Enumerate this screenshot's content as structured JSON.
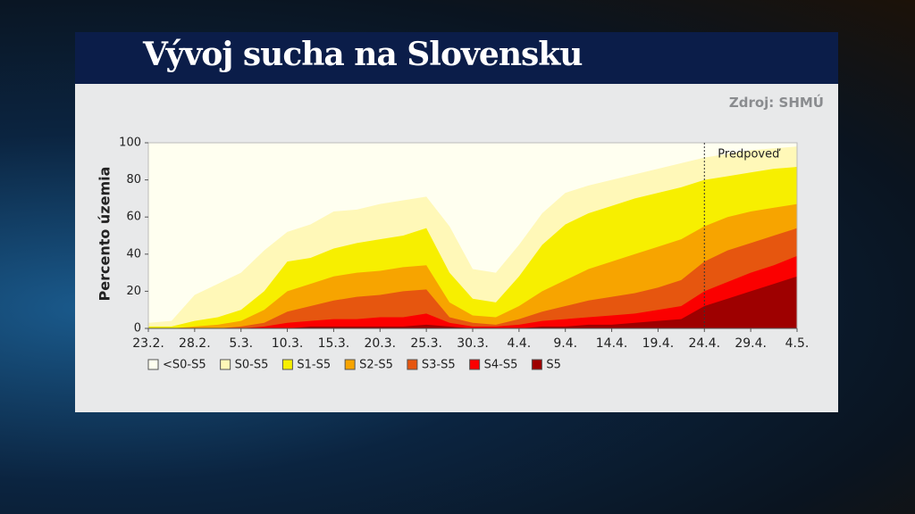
{
  "header": {
    "title": "Vývoj sucha na Slovensku",
    "source": "Zdroj: SHMÚ"
  },
  "chart_data": {
    "type": "area",
    "y_label": "Percento územia",
    "annotation": "Predpoveď",
    "forecast_start": "24.4.",
    "categories": [
      "23.2.",
      null,
      "28.2.",
      null,
      "5.3.",
      null,
      "10.3.",
      null,
      "15.3.",
      null,
      "20.3.",
      null,
      "25.3.",
      null,
      "30.3.",
      null,
      "4.4.",
      null,
      "9.4.",
      null,
      "14.4.",
      null,
      "19.4.",
      null,
      "24.4.",
      null,
      "29.4.",
      null,
      "4.5."
    ],
    "ylim": [
      0,
      100
    ],
    "yticks": [
      0,
      20,
      40,
      60,
      80,
      100
    ],
    "series": [
      {
        "name": "<S0-S5",
        "color": "#fffff0",
        "values": [
          100,
          100,
          100,
          100,
          100,
          100,
          100,
          100,
          100,
          100,
          100,
          100,
          100,
          100,
          100,
          100,
          100,
          100,
          100,
          100,
          100,
          100,
          100,
          100,
          100,
          100,
          100,
          100,
          100
        ]
      },
      {
        "name": "S0-S5",
        "color": "#fff8b8",
        "values": [
          3,
          4,
          18,
          24,
          30,
          42,
          52,
          56,
          63,
          64,
          67,
          69,
          71,
          55,
          32,
          30,
          45,
          62,
          73,
          77,
          80,
          83,
          86,
          89,
          92,
          94,
          96,
          97,
          98
        ]
      },
      {
        "name": "S1-S5",
        "color": "#f7ef00",
        "values": [
          1,
          1,
          4,
          6,
          10,
          20,
          36,
          38,
          43,
          46,
          48,
          50,
          54,
          30,
          16,
          14,
          28,
          45,
          56,
          62,
          66,
          70,
          73,
          76,
          80,
          82,
          84,
          86,
          87
        ]
      },
      {
        "name": "S2-S5",
        "color": "#f7a400",
        "values": [
          0,
          0,
          1,
          2,
          4,
          10,
          20,
          24,
          28,
          30,
          31,
          33,
          34,
          14,
          7,
          6,
          12,
          20,
          26,
          32,
          36,
          40,
          44,
          48,
          55,
          60,
          63,
          65,
          67
        ]
      },
      {
        "name": "S3-S5",
        "color": "#e6560f",
        "values": [
          0,
          0,
          0,
          0,
          1,
          3,
          9,
          12,
          15,
          17,
          18,
          20,
          21,
          6,
          3,
          2,
          5,
          9,
          12,
          15,
          17,
          19,
          22,
          26,
          36,
          42,
          46,
          50,
          54
        ]
      },
      {
        "name": "S4-S5",
        "color": "#fb0000",
        "values": [
          0,
          0,
          0,
          0,
          0,
          1,
          3,
          4,
          5,
          5,
          6,
          6,
          8,
          3,
          1,
          1,
          2,
          4,
          5,
          6,
          7,
          8,
          10,
          12,
          20,
          25,
          30,
          34,
          39
        ]
      },
      {
        "name": "S5",
        "color": "#9e0000",
        "values": [
          0,
          0,
          0,
          0,
          0,
          0,
          0,
          1,
          1,
          1,
          1,
          1,
          2,
          1,
          0,
          0,
          0,
          1,
          1,
          2,
          2,
          3,
          4,
          5,
          12,
          16,
          20,
          24,
          28
        ]
      }
    ]
  }
}
